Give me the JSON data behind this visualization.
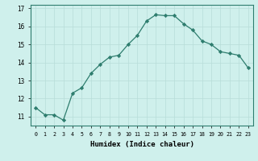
{
  "x": [
    0,
    1,
    2,
    3,
    4,
    5,
    6,
    7,
    8,
    9,
    10,
    11,
    12,
    13,
    14,
    15,
    16,
    17,
    18,
    19,
    20,
    21,
    22,
    23
  ],
  "y": [
    11.5,
    11.1,
    11.1,
    10.8,
    12.3,
    12.6,
    13.4,
    13.9,
    14.3,
    14.4,
    15.0,
    15.5,
    16.3,
    16.65,
    16.6,
    16.6,
    16.15,
    15.8,
    15.2,
    15.0,
    14.6,
    14.5,
    14.4,
    13.7
  ],
  "line_color": "#2e7d6e",
  "marker": "D",
  "marker_size": 2.2,
  "xlabel": "Humidex (Indice chaleur)",
  "xlim": [
    -0.5,
    23.5
  ],
  "ylim": [
    10.5,
    17.2
  ],
  "yticks": [
    11,
    12,
    13,
    14,
    15,
    16,
    17
  ],
  "xticks": [
    0,
    1,
    2,
    3,
    4,
    5,
    6,
    7,
    8,
    9,
    10,
    11,
    12,
    13,
    14,
    15,
    16,
    17,
    18,
    19,
    20,
    21,
    22,
    23
  ],
  "bg_color": "#cff0ec",
  "grid_color": "#b8ddd8",
  "line_width": 0.9
}
